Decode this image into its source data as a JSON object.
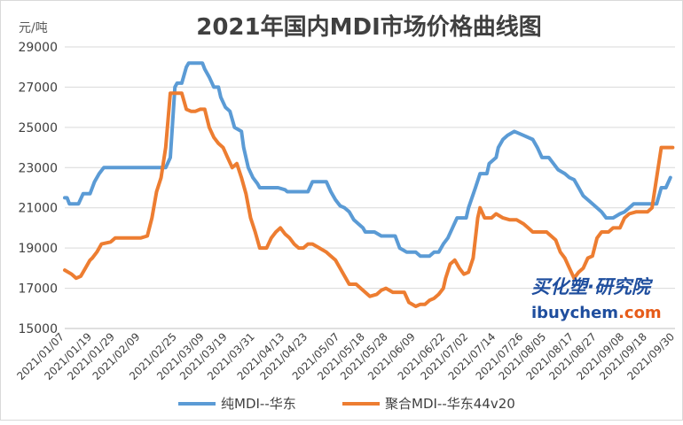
{
  "chart_data": {
    "type": "line",
    "title": "2021年国内MDI市场价格曲线图",
    "y_unit": "元/吨",
    "xlabel": "",
    "ylabel": "",
    "ylim": [
      15000,
      29000
    ],
    "y_ticks": [
      15000,
      17000,
      19000,
      21000,
      23000,
      25000,
      27000,
      29000
    ],
    "x_tick_labels": [
      "2021/01/07",
      "2021/01/19",
      "2021/01/29",
      "2021/02/09",
      "2021/02/25",
      "2021/03/09",
      "2021/03/19",
      "2021/03/31",
      "2021/04/13",
      "2021/04/23",
      "2021/05/07",
      "2021/05/18",
      "2021/05/28",
      "2021/06/09",
      "2021/06/22",
      "2021/07/02",
      "2021/07/14",
      "2021/07/26",
      "2021/08/05",
      "2021/08/17",
      "2021/08/27",
      "2021/09/08",
      "2021/09/18",
      "2021/09/30"
    ],
    "grid": true,
    "legend_position": "bottom",
    "series": [
      {
        "name": "纯MDI--华东",
        "color": "#5b9bd5",
        "points": [
          [
            "2021/01/07",
            21500
          ],
          [
            "2021/01/08",
            21500
          ],
          [
            "2021/01/09",
            21200
          ],
          [
            "2021/01/13",
            21200
          ],
          [
            "2021/01/15",
            21700
          ],
          [
            "2021/01/18",
            21700
          ],
          [
            "2021/01/20",
            22300
          ],
          [
            "2021/01/22",
            22700
          ],
          [
            "2021/01/24",
            23000
          ],
          [
            "2021/02/09",
            23000
          ],
          [
            "2021/02/20",
            23000
          ],
          [
            "2021/02/22",
            23500
          ],
          [
            "2021/02/24",
            27000
          ],
          [
            "2021/02/25",
            27200
          ],
          [
            "2021/02/27",
            27200
          ],
          [
            "2021/02/28",
            27600
          ],
          [
            "2021/03/01",
            28000
          ],
          [
            "2021/03/02",
            28200
          ],
          [
            "2021/03/08",
            28200
          ],
          [
            "2021/03/09",
            27900
          ],
          [
            "2021/03/11",
            27500
          ],
          [
            "2021/03/13",
            27000
          ],
          [
            "2021/03/15",
            27000
          ],
          [
            "2021/03/16",
            26500
          ],
          [
            "2021/03/18",
            26000
          ],
          [
            "2021/03/20",
            25800
          ],
          [
            "2021/03/22",
            25000
          ],
          [
            "2021/03/25",
            24800
          ],
          [
            "2021/03/26",
            24000
          ],
          [
            "2021/03/28",
            23000
          ],
          [
            "2021/03/30",
            22500
          ],
          [
            "2021/04/01",
            22200
          ],
          [
            "2021/04/02",
            22000
          ],
          [
            "2021/04/10",
            22000
          ],
          [
            "2021/04/13",
            21900
          ],
          [
            "2021/04/14",
            21800
          ],
          [
            "2021/04/23",
            21800
          ],
          [
            "2021/04/25",
            22300
          ],
          [
            "2021/05/01",
            22300
          ],
          [
            "2021/05/03",
            21800
          ],
          [
            "2021/05/05",
            21400
          ],
          [
            "2021/05/07",
            21100
          ],
          [
            "2021/05/09",
            21000
          ],
          [
            "2021/05/11",
            20800
          ],
          [
            "2021/05/13",
            20400
          ],
          [
            "2021/05/15",
            20200
          ],
          [
            "2021/05/17",
            20000
          ],
          [
            "2021/05/18",
            19800
          ],
          [
            "2021/05/22",
            19800
          ],
          [
            "2021/05/25",
            19600
          ],
          [
            "2021/05/31",
            19600
          ],
          [
            "2021/06/02",
            19000
          ],
          [
            "2021/06/05",
            18800
          ],
          [
            "2021/06/09",
            18800
          ],
          [
            "2021/06/11",
            18600
          ],
          [
            "2021/06/15",
            18600
          ],
          [
            "2021/06/17",
            18800
          ],
          [
            "2021/06/19",
            18800
          ],
          [
            "2021/06/21",
            19200
          ],
          [
            "2021/06/23",
            19500
          ],
          [
            "2021/06/25",
            20000
          ],
          [
            "2021/06/27",
            20500
          ],
          [
            "2021/07/01",
            20500
          ],
          [
            "2021/07/02",
            21000
          ],
          [
            "2021/07/05",
            22000
          ],
          [
            "2021/07/07",
            22700
          ],
          [
            "2021/07/10",
            22700
          ],
          [
            "2021/07/11",
            23200
          ],
          [
            "2021/07/14",
            23500
          ],
          [
            "2021/07/15",
            24000
          ],
          [
            "2021/07/17",
            24400
          ],
          [
            "2021/07/19",
            24600
          ],
          [
            "2021/07/22",
            24800
          ],
          [
            "2021/07/26",
            24600
          ],
          [
            "2021/07/30",
            24400
          ],
          [
            "2021/08/01",
            24000
          ],
          [
            "2021/08/03",
            23500
          ],
          [
            "2021/08/06",
            23500
          ],
          [
            "2021/08/08",
            23200
          ],
          [
            "2021/08/10",
            22900
          ],
          [
            "2021/08/13",
            22700
          ],
          [
            "2021/08/15",
            22500
          ],
          [
            "2021/08/17",
            22400
          ],
          [
            "2021/08/19",
            22000
          ],
          [
            "2021/08/21",
            21600
          ],
          [
            "2021/08/24",
            21300
          ],
          [
            "2021/08/27",
            21000
          ],
          [
            "2021/08/29",
            20800
          ],
          [
            "2021/08/31",
            20500
          ],
          [
            "2021/09/03",
            20500
          ],
          [
            "2021/09/06",
            20700
          ],
          [
            "2021/09/08",
            20800
          ],
          [
            "2021/09/10",
            21000
          ],
          [
            "2021/09/12",
            21200
          ],
          [
            "2021/09/20",
            21200
          ],
          [
            "2021/09/22",
            21200
          ],
          [
            "2021/09/24",
            22000
          ],
          [
            "2021/09/26",
            22000
          ],
          [
            "2021/09/28",
            22500
          ]
        ]
      },
      {
        "name": "聚合MDI--华东44v20",
        "color": "#ed7d31",
        "points": [
          [
            "2021/01/07",
            17900
          ],
          [
            "2021/01/10",
            17700
          ],
          [
            "2021/01/12",
            17500
          ],
          [
            "2021/01/14",
            17600
          ],
          [
            "2021/01/16",
            18000
          ],
          [
            "2021/01/18",
            18400
          ],
          [
            "2021/01/19",
            18500
          ],
          [
            "2021/01/21",
            18800
          ],
          [
            "2021/01/23",
            19200
          ],
          [
            "2021/01/27",
            19300
          ],
          [
            "2021/01/29",
            19500
          ],
          [
            "2021/02/03",
            19500
          ],
          [
            "2021/02/09",
            19500
          ],
          [
            "2021/02/12",
            19600
          ],
          [
            "2021/02/14",
            20500
          ],
          [
            "2021/02/16",
            21800
          ],
          [
            "2021/02/18",
            22500
          ],
          [
            "2021/02/20",
            24000
          ],
          [
            "2021/02/22",
            26700
          ],
          [
            "2021/02/27",
            26700
          ],
          [
            "2021/02/28",
            26300
          ],
          [
            "2021/03/01",
            25900
          ],
          [
            "2021/03/03",
            25800
          ],
          [
            "2021/03/05",
            25800
          ],
          [
            "2021/03/07",
            25900
          ],
          [
            "2021/03/09",
            25900
          ],
          [
            "2021/03/11",
            25000
          ],
          [
            "2021/03/13",
            24500
          ],
          [
            "2021/03/15",
            24200
          ],
          [
            "2021/03/17",
            24000
          ],
          [
            "2021/03/19",
            23500
          ],
          [
            "2021/03/21",
            23000
          ],
          [
            "2021/03/23",
            23200
          ],
          [
            "2021/03/25",
            22500
          ],
          [
            "2021/03/27",
            21700
          ],
          [
            "2021/03/29",
            20500
          ],
          [
            "2021/03/31",
            19800
          ],
          [
            "2021/04/02",
            19000
          ],
          [
            "2021/04/05",
            19000
          ],
          [
            "2021/04/07",
            19500
          ],
          [
            "2021/04/09",
            19800
          ],
          [
            "2021/04/11",
            20000
          ],
          [
            "2021/04/13",
            19700
          ],
          [
            "2021/04/15",
            19500
          ],
          [
            "2021/04/17",
            19200
          ],
          [
            "2021/04/19",
            19000
          ],
          [
            "2021/04/21",
            19000
          ],
          [
            "2021/04/23",
            19200
          ],
          [
            "2021/04/25",
            19200
          ],
          [
            "2021/04/28",
            19000
          ],
          [
            "2021/05/01",
            18800
          ],
          [
            "2021/05/03",
            18600
          ],
          [
            "2021/05/05",
            18400
          ],
          [
            "2021/05/07",
            18000
          ],
          [
            "2021/05/09",
            17600
          ],
          [
            "2021/05/11",
            17200
          ],
          [
            "2021/05/14",
            17200
          ],
          [
            "2021/05/16",
            17000
          ],
          [
            "2021/05/18",
            16800
          ],
          [
            "2021/05/20",
            16600
          ],
          [
            "2021/05/23",
            16700
          ],
          [
            "2021/05/25",
            16900
          ],
          [
            "2021/05/27",
            17000
          ],
          [
            "2021/05/30",
            16800
          ],
          [
            "2021/06/04",
            16800
          ],
          [
            "2021/06/06",
            16300
          ],
          [
            "2021/06/09",
            16100
          ],
          [
            "2021/06/11",
            16200
          ],
          [
            "2021/06/13",
            16200
          ],
          [
            "2021/06/15",
            16400
          ],
          [
            "2021/06/17",
            16500
          ],
          [
            "2021/06/19",
            16700
          ],
          [
            "2021/06/21",
            17000
          ],
          [
            "2021/06/22",
            17500
          ],
          [
            "2021/06/24",
            18200
          ],
          [
            "2021/06/26",
            18400
          ],
          [
            "2021/06/28",
            18000
          ],
          [
            "2021/06/30",
            17700
          ],
          [
            "2021/07/02",
            17800
          ],
          [
            "2021/07/04",
            18500
          ],
          [
            "2021/07/06",
            20500
          ],
          [
            "2021/07/07",
            21000
          ],
          [
            "2021/07/09",
            20500
          ],
          [
            "2021/07/12",
            20500
          ],
          [
            "2021/07/14",
            20700
          ],
          [
            "2021/07/17",
            20500
          ],
          [
            "2021/07/20",
            20400
          ],
          [
            "2021/07/23",
            20400
          ],
          [
            "2021/07/26",
            20200
          ],
          [
            "2021/07/28",
            20000
          ],
          [
            "2021/07/30",
            19800
          ],
          [
            "2021/08/02",
            19800
          ],
          [
            "2021/08/05",
            19800
          ],
          [
            "2021/08/07",
            19600
          ],
          [
            "2021/08/09",
            19400
          ],
          [
            "2021/08/11",
            18800
          ],
          [
            "2021/08/13",
            18500
          ],
          [
            "2021/08/15",
            18000
          ],
          [
            "2021/08/17",
            17500
          ],
          [
            "2021/08/19",
            17800
          ],
          [
            "2021/08/21",
            18000
          ],
          [
            "2021/08/23",
            18500
          ],
          [
            "2021/08/25",
            18600
          ],
          [
            "2021/08/27",
            19500
          ],
          [
            "2021/08/29",
            19800
          ],
          [
            "2021/09/01",
            19800
          ],
          [
            "2021/09/03",
            20000
          ],
          [
            "2021/09/06",
            20000
          ],
          [
            "2021/09/08",
            20500
          ],
          [
            "2021/09/10",
            20700
          ],
          [
            "2021/09/13",
            20800
          ],
          [
            "2021/09/16",
            20800
          ],
          [
            "2021/09/18",
            20800
          ],
          [
            "2021/09/20",
            21000
          ],
          [
            "2021/09/22",
            22500
          ],
          [
            "2021/09/24",
            24000
          ],
          [
            "2021/09/29",
            24000
          ]
        ]
      }
    ]
  },
  "watermark": {
    "brand_cn": "买化塑·研究院",
    "brand_url_a": "ibuychem",
    "brand_url_b": ".com"
  }
}
